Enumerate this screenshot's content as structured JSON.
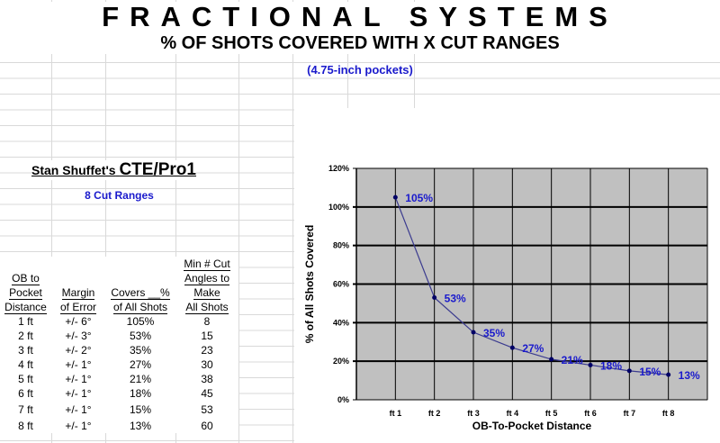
{
  "header": {
    "title": "FRACTIONAL SYSTEMS",
    "subtitle": "% OF SHOTS COVERED WITH X CUT RANGES",
    "pockets": "(4.75-inch pockets)"
  },
  "table_section": {
    "title_prefix": "Stan Shuffet's",
    "title_system": "CTE/Pro1",
    "cut_ranges": "8 Cut Ranges",
    "columns": [
      "OB to Pocket Distance",
      "Margin of Error",
      "Covers __% of All Shots",
      "Min # Cut Angles to Make All Shots"
    ],
    "col_lines": [
      [
        "OB to",
        "Pocket",
        "Distance"
      ],
      [
        "Margin",
        "of Error"
      ],
      [
        "Covers __%",
        "of All Shots"
      ],
      [
        "Min # Cut",
        "Angles to",
        "Make",
        "All Shots"
      ]
    ],
    "rows": [
      [
        "1 ft",
        "+/- 6°",
        "105%",
        "8"
      ],
      [
        "2 ft",
        "+/- 3°",
        "53%",
        "15"
      ],
      [
        "3 ft",
        "+/- 2°",
        "35%",
        "23"
      ],
      [
        "4 ft",
        "+/- 1°",
        "27%",
        "30"
      ],
      [
        "5 ft",
        "+/- 1°",
        "21%",
        "38"
      ],
      [
        "6 ft",
        "+/- 1°",
        "18%",
        "45"
      ],
      [
        "7 ft",
        "+/- 1°",
        "15%",
        "53"
      ],
      [
        "8 ft",
        "+/- 1°",
        "13%",
        "60"
      ]
    ]
  },
  "chart_data": {
    "type": "line",
    "categories": [
      "ft 1",
      "ft 2",
      "ft 3",
      "ft 4",
      "ft 5",
      "ft 6",
      "ft 7",
      "ft 8"
    ],
    "values": [
      105,
      53,
      35,
      27,
      21,
      18,
      15,
      13
    ],
    "data_labels": [
      "105%",
      "53%",
      "35%",
      "27%",
      "21%",
      "18%",
      "15%",
      "13%"
    ],
    "xlabel": "OB-To-Pocket Distance",
    "ylabel": "% of All Shots Covered",
    "ylim": [
      0,
      120
    ],
    "yticks": [
      "0%",
      "20%",
      "40%",
      "60%",
      "80%",
      "100%",
      "120%"
    ],
    "grid": true,
    "plot_bg": "#c0c0c0",
    "line_color": "#3b3b8f",
    "label_color": "#1a1acc"
  }
}
